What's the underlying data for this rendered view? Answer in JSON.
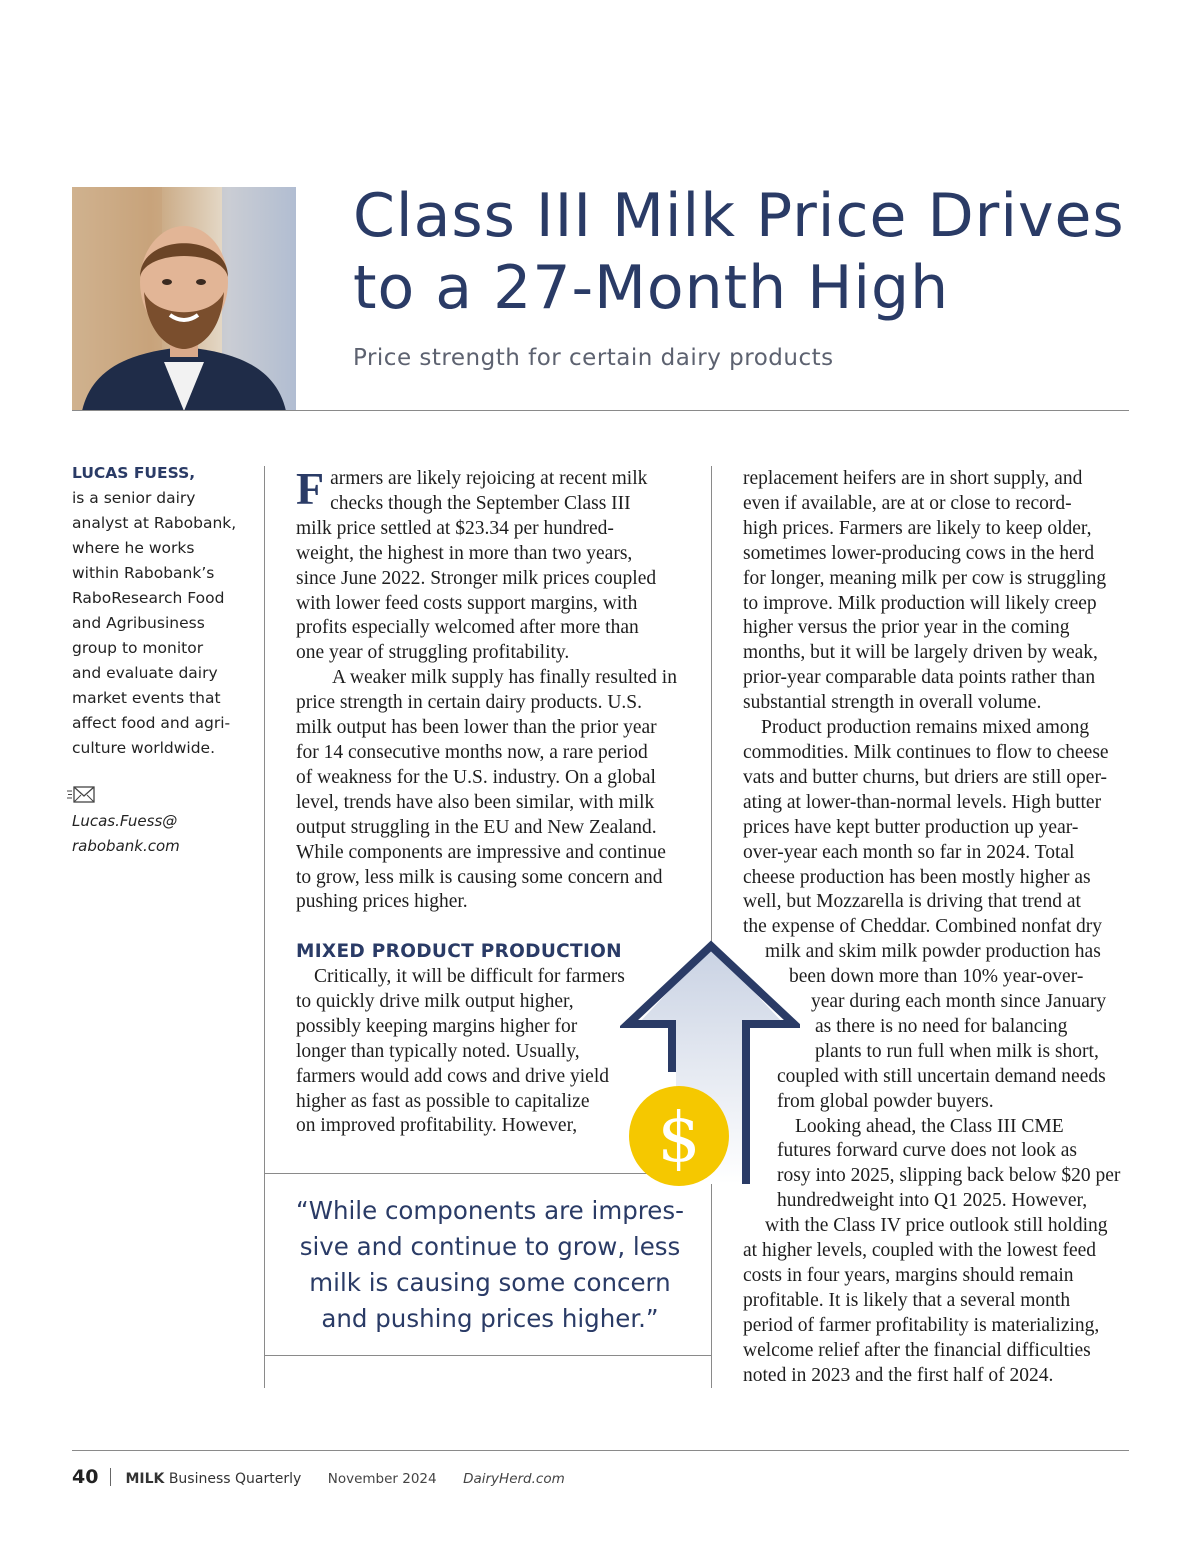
{
  "article": {
    "title_line1": "Class III Milk Price Drives",
    "title_line2": "to a 27-Month High",
    "subtitle": "Price strength for certain dairy products"
  },
  "author": {
    "name": "LUCAS FUESS,",
    "bio_lines": [
      "is a senior dairy",
      "analyst at Rabobank,",
      "where he works",
      "within Rabobank’s",
      "RaboResearch Food",
      "and Agribusiness",
      "group to monitor",
      "and evaluate dairy",
      "market events that",
      "affect food and agri-",
      "culture worldwide."
    ],
    "email_line1": "Lucas.Fuess@",
    "email_line2": "rabobank.com"
  },
  "col1": {
    "dropcap": "F",
    "para1_lines": [
      "armers are likely rejoicing at recent milk",
      "checks though the September Class III",
      "milk price settled at $23.34 per hundred-",
      "weight, the highest in more than two years,",
      "since June 2022. Stronger milk prices coupled",
      "with lower feed costs support margins, with",
      "profits especially welcomed after more than",
      "one year of struggling profitability."
    ],
    "para2_lines": [
      "A weaker milk supply has finally resulted in",
      "price strength in certain dairy products. U.S.",
      "milk output has been lower than the prior year",
      "for 14 consecutive months now, a rare period",
      "of weakness for the U.S. industry. On a global",
      "level, trends have also been similar, with milk",
      "output struggling in the EU and New Zealand.",
      "While components are impressive and continue",
      "to grow, less milk is causing some concern and",
      "pushing prices higher."
    ],
    "subhead": "MIXED PRODUCT PRODUCTION",
    "para3_lines": [
      "Critically, it will be difficult for farmers",
      "to quickly drive milk output higher,",
      "possibly keeping margins higher for",
      "longer than typically noted. Usually,",
      "farmers would add cows and drive yield",
      "higher as fast as possible to capitalize",
      "on improved profitability. However,"
    ]
  },
  "pullquote_lines": [
    "“While components are impres-",
    "sive and continue to grow, less",
    "milk is causing some concern",
    "and pushing prices higher.”"
  ],
  "col2": {
    "para1_lines": [
      "replacement heifers are in short supply, and",
      "even if available, are at or close to record-",
      "high prices. Farmers are likely to keep older,",
      "sometimes lower-producing cows in the herd",
      "for longer, meaning milk per cow is struggling",
      "to improve. Milk production will likely creep",
      "higher versus the prior year in the coming",
      "months, but it will be largely driven by weak,",
      "prior-year comparable data points rather than",
      "substantial strength in overall volume."
    ],
    "para2_lines": [
      "Product production remains mixed among",
      "commodities. Milk continues to flow to cheese",
      "vats and butter churns, but driers are still oper-",
      "ating at lower-than-normal levels. High butter",
      "prices have kept butter production up year-",
      "over-year each month so far in 2024. Total",
      "cheese production has been mostly higher as",
      "well, but Mozzarella is driving that trend at",
      "the expense of Cheddar. Combined nonfat dry",
      "milk and skim milk powder production has",
      "been down more than 10% year-over-",
      "year during each month since January",
      "as there is no need for balancing",
      "plants to run full when milk is short,",
      "coupled with still uncertain demand needs",
      "from global powder buyers."
    ],
    "para3_lines": [
      "Looking ahead, the Class III CME",
      "futures forward curve does not look as",
      "rosy into 2025, slipping back below $20 per",
      "hundredweight into Q1 2025. However,",
      "with the Class IV price outlook still holding",
      "at higher levels, coupled with the lowest feed",
      "costs in four years, margins should remain",
      "profitable. It is likely that a several month",
      "period of farmer profitability is materializing,",
      "welcome relief after the financial difficulties",
      "noted in 2023 and the first half of 2024."
    ]
  },
  "graphic": {
    "dollar_symbol": "$",
    "arrow_color": "#2a3b66",
    "coin_color": "#f5c800"
  },
  "footer": {
    "page_number": "40",
    "magazine_bold": "MILK",
    "magazine_rest": " Business Quarterly",
    "date": "November 2024",
    "site": "DairyHerd.com"
  },
  "colors": {
    "navy": "#2a3b66",
    "gray_text": "#5d6270"
  }
}
